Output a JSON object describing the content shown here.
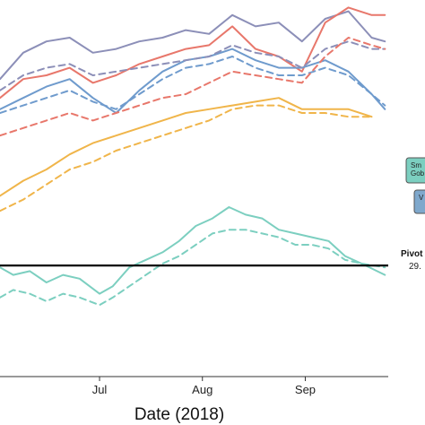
{
  "chart_data": {
    "type": "line",
    "xlabel": "Date (2018)",
    "xlim": [
      "2018-06-01",
      "2018-09-26"
    ],
    "ylim": [
      0,
      100
    ],
    "x_ticks": [
      {
        "label": "Jul",
        "date": "2018-07-01"
      },
      {
        "label": "Aug",
        "date": "2018-08-01"
      },
      {
        "label": "Sep",
        "date": "2018-09-01"
      }
    ],
    "pivot": {
      "label": "Pivot",
      "value_text": "29.",
      "value": 29.5,
      "color": "#000000"
    },
    "legend": [
      {
        "label_lines": [
          "Sm",
          "Gob"
        ],
        "fill": "#7ccfc0"
      },
      {
        "label_lines": [
          "V"
        ],
        "fill": "#7fa8cc"
      }
    ],
    "series": [
      {
        "color": "#8c8fb8",
        "dash": "solid",
        "x": [
          "2018-06-01",
          "2018-06-08",
          "2018-06-15",
          "2018-06-22",
          "2018-06-29",
          "2018-07-06",
          "2018-07-13",
          "2018-07-20",
          "2018-07-27",
          "2018-08-03",
          "2018-08-10",
          "2018-08-17",
          "2018-08-24",
          "2018-08-31",
          "2018-09-07",
          "2018-09-14",
          "2018-09-21",
          "2018-09-25"
        ],
        "y": [
          79,
          86,
          89,
          90,
          86,
          87,
          89,
          90,
          92,
          91,
          96,
          93,
          94,
          89,
          95,
          97,
          90,
          89
        ]
      },
      {
        "color": "#e8776b",
        "dash": "solid",
        "x": [
          "2018-06-01",
          "2018-06-08",
          "2018-06-15",
          "2018-06-22",
          "2018-06-29",
          "2018-07-06",
          "2018-07-13",
          "2018-07-20",
          "2018-07-27",
          "2018-08-03",
          "2018-08-10",
          "2018-08-17",
          "2018-08-24",
          "2018-08-31",
          "2018-09-07",
          "2018-09-14",
          "2018-09-21",
          "2018-09-25"
        ],
        "y": [
          74,
          79,
          80,
          82,
          78,
          80,
          83,
          85,
          87,
          88,
          93,
          87,
          85,
          81,
          94,
          98,
          96,
          96
        ]
      },
      {
        "color": "#6f9bcd",
        "dash": "solid",
        "x": [
          "2018-06-01",
          "2018-06-08",
          "2018-06-15",
          "2018-06-22",
          "2018-06-29",
          "2018-07-06",
          "2018-07-13",
          "2018-07-20",
          "2018-07-27",
          "2018-08-03",
          "2018-08-10",
          "2018-08-17",
          "2018-08-24",
          "2018-08-31",
          "2018-09-07",
          "2018-09-14",
          "2018-09-21",
          "2018-09-25"
        ],
        "y": [
          71,
          74,
          77,
          79,
          74,
          70,
          76,
          81,
          84,
          85,
          87,
          84,
          82,
          82,
          84,
          81,
          75,
          71
        ]
      },
      {
        "color": "#8c8fb8",
        "dash": "dashed",
        "x": [
          "2018-06-01",
          "2018-06-08",
          "2018-06-15",
          "2018-06-22",
          "2018-06-29",
          "2018-07-06",
          "2018-07-13",
          "2018-07-20",
          "2018-07-27",
          "2018-08-03",
          "2018-08-10",
          "2018-08-17",
          "2018-08-24",
          "2018-08-31",
          "2018-09-07",
          "2018-09-14",
          "2018-09-21",
          "2018-09-25"
        ],
        "y": [
          76,
          80,
          82,
          83,
          80,
          81,
          82,
          83,
          84,
          85,
          88,
          86,
          85,
          82,
          87,
          89,
          87,
          87
        ]
      },
      {
        "color": "#6f9bcd",
        "dash": "dashed",
        "x": [
          "2018-06-01",
          "2018-06-08",
          "2018-06-15",
          "2018-06-22",
          "2018-06-29",
          "2018-07-06",
          "2018-07-13",
          "2018-07-20",
          "2018-07-27",
          "2018-08-03",
          "2018-08-10",
          "2018-08-17",
          "2018-08-24",
          "2018-08-31",
          "2018-09-07",
          "2018-09-14",
          "2018-09-21",
          "2018-09-25"
        ],
        "y": [
          70,
          72,
          74,
          76,
          73,
          71,
          75,
          79,
          82,
          83,
          85,
          82,
          80,
          80,
          82,
          80,
          75,
          72
        ]
      },
      {
        "color": "#e8776b",
        "dash": "dashed",
        "x": [
          "2018-06-01",
          "2018-06-08",
          "2018-06-15",
          "2018-06-22",
          "2018-06-29",
          "2018-07-06",
          "2018-07-13",
          "2018-07-20",
          "2018-07-27",
          "2018-08-03",
          "2018-08-10",
          "2018-08-17",
          "2018-08-24",
          "2018-08-31",
          "2018-09-07",
          "2018-09-14",
          "2018-09-21",
          "2018-09-25"
        ],
        "y": [
          64,
          66,
          68,
          70,
          68,
          70,
          72,
          74,
          75,
          78,
          81,
          80,
          79,
          78,
          85,
          90,
          88,
          87
        ]
      },
      {
        "color": "#f0b54a",
        "dash": "solid",
        "x": [
          "2018-06-01",
          "2018-06-08",
          "2018-06-15",
          "2018-06-22",
          "2018-06-29",
          "2018-07-06",
          "2018-07-13",
          "2018-07-20",
          "2018-07-27",
          "2018-08-03",
          "2018-08-10",
          "2018-08-17",
          "2018-08-24",
          "2018-08-31",
          "2018-09-07",
          "2018-09-14",
          "2018-09-21"
        ],
        "y": [
          48,
          52,
          55,
          59,
          62,
          64,
          66,
          68,
          70,
          71,
          72,
          73,
          74,
          71,
          71,
          71,
          69
        ]
      },
      {
        "color": "#f0b54a",
        "dash": "dashed",
        "x": [
          "2018-06-01",
          "2018-06-08",
          "2018-06-15",
          "2018-06-22",
          "2018-06-29",
          "2018-07-06",
          "2018-07-13",
          "2018-07-20",
          "2018-07-27",
          "2018-08-03",
          "2018-08-10",
          "2018-08-17",
          "2018-08-24",
          "2018-08-31",
          "2018-09-07",
          "2018-09-14",
          "2018-09-21"
        ],
        "y": [
          44,
          47,
          51,
          55,
          57,
          60,
          62,
          64,
          66,
          68,
          71,
          72,
          72,
          70,
          70,
          69,
          69
        ]
      },
      {
        "color": "#7ccfc0",
        "dash": "solid",
        "x": [
          "2018-06-01",
          "2018-06-05",
          "2018-06-10",
          "2018-06-15",
          "2018-06-20",
          "2018-06-25",
          "2018-07-01",
          "2018-07-05",
          "2018-07-10",
          "2018-07-15",
          "2018-07-20",
          "2018-07-25",
          "2018-07-30",
          "2018-08-04",
          "2018-08-09",
          "2018-08-14",
          "2018-08-19",
          "2018-08-24",
          "2018-08-29",
          "2018-09-03",
          "2018-09-08",
          "2018-09-13",
          "2018-09-18",
          "2018-09-25"
        ],
        "y": [
          29,
          27,
          28,
          25,
          27,
          26,
          22,
          24,
          29,
          31,
          33,
          36,
          40,
          42,
          45,
          43,
          42,
          39,
          38,
          37,
          36,
          32,
          30,
          27
        ]
      },
      {
        "color": "#7ccfc0",
        "dash": "dashed",
        "x": [
          "2018-06-01",
          "2018-06-05",
          "2018-06-10",
          "2018-06-15",
          "2018-06-20",
          "2018-06-25",
          "2018-07-01",
          "2018-07-05",
          "2018-07-10",
          "2018-07-15",
          "2018-07-20",
          "2018-07-25",
          "2018-07-30",
          "2018-08-04",
          "2018-08-09",
          "2018-08-14",
          "2018-08-19",
          "2018-08-24",
          "2018-08-29",
          "2018-09-03",
          "2018-09-08",
          "2018-09-13",
          "2018-09-18",
          "2018-09-25"
        ],
        "y": [
          21,
          23,
          22,
          20,
          22,
          21,
          19,
          21,
          24,
          27,
          30,
          32,
          35,
          38,
          39,
          39,
          38,
          37,
          35,
          35,
          34,
          31,
          30,
          29
        ]
      }
    ]
  }
}
